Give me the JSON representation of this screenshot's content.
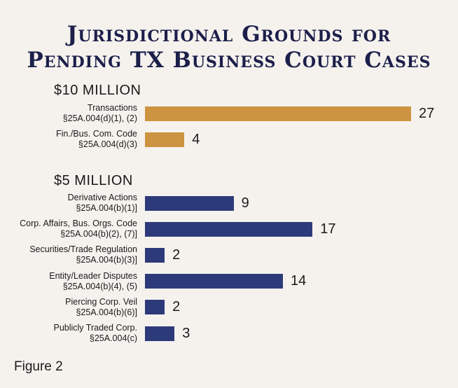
{
  "chart_data": {
    "type": "bar",
    "orientation": "horizontal",
    "title": "Jurisdictional Grounds for Pending TX Business Court Cases",
    "title_lines": [
      "Jurisdictional Grounds for",
      "Pending TX Business Court Cases"
    ],
    "groups": [
      {
        "heading": "$10 MILLION",
        "color": "#cc9340",
        "categories": [
          {
            "line1": "Transactions",
            "line2": "§25A.004(d)(1), (2)",
            "value": 27
          },
          {
            "line1": "Fin./Bus. Com. Code",
            "line2": "§25A.004(d)(3)",
            "value": 4
          }
        ]
      },
      {
        "heading": "$5 MILLION",
        "color": "#2d3a7a",
        "categories": [
          {
            "line1": "Derivative Actions",
            "line2": "§25A.004(b)(1)]",
            "value": 9
          },
          {
            "line1": "Corp. Affairs, Bus. Orgs. Code",
            "line2": "§25A.004(b)(2), (7)]",
            "value": 17
          },
          {
            "line1": "Securities/Trade Regulation",
            "line2": "§25A.004(b)(3)]",
            "value": 2
          },
          {
            "line1": "Entity/Leader Disputes",
            "line2": "§25A.004(b)(4), (5)",
            "value": 14
          },
          {
            "line1": "Piercing Corp. Veil",
            "line2": "§25A.004(b)(6)]",
            "value": 2
          },
          {
            "line1": "Publicly Traded Corp.",
            "line2": "§25A.004(c)",
            "value": 3
          }
        ]
      }
    ],
    "xlim": [
      0,
      27
    ],
    "grid": false,
    "legend": "none"
  },
  "footer": "Figure 2"
}
